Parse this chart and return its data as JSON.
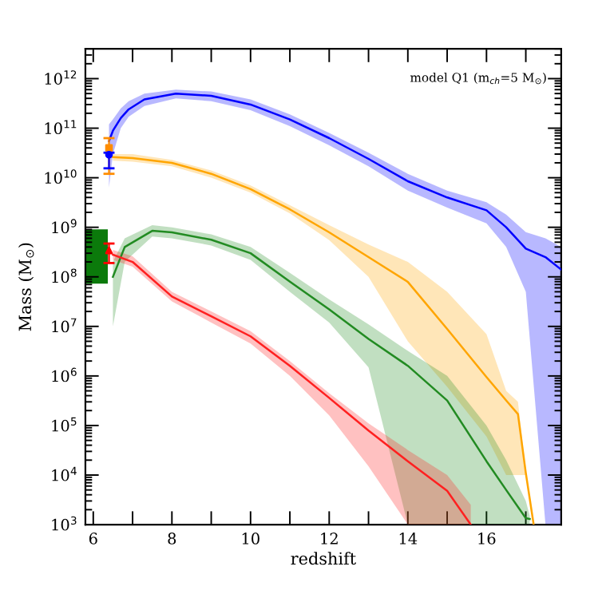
{
  "chart_data": {
    "type": "line",
    "xlabel": "redshift",
    "ylabel": "Mass (M$_{⊙}$)",
    "log": "y",
    "grid": false,
    "annotations": [
      "model Q1 (m$_{ch}$=5 M$_{⊙}$)"
    ],
    "xlim": [
      5.8,
      17.9
    ],
    "ylim": [
      1000,
      4000000000000.0
    ],
    "xticks": [
      6,
      {
        "value": 7,
        "label": null
      },
      8,
      {
        "value": 9,
        "label": null
      },
      10,
      {
        "value": 11,
        "label": null
      },
      12,
      {
        "value": 13,
        "label": null
      },
      14,
      {
        "value": 15,
        "label": null
      },
      16,
      {
        "value": 17,
        "label": null
      }
    ],
    "yticks": [
      {
        "value": 1000,
        "label": "10$^{3}$"
      },
      {
        "value": 10000,
        "label": "10$^{4}$"
      },
      {
        "value": 100000,
        "label": "10$^{5}$"
      },
      {
        "value": 1000000,
        "label": "10$^{6}$"
      },
      {
        "value": 10000000,
        "label": "10$^{7}$"
      },
      {
        "value": 100000000,
        "label": "10$^{8}$"
      },
      {
        "value": 1000000000,
        "label": "10$^{9}$"
      },
      {
        "value": 10000000000,
        "label": "10$^{10}$"
      },
      {
        "value": 100000000000,
        "label": "10$^{11}$"
      },
      {
        "value": 1000000000000,
        "label": "10$^{12}$"
      }
    ],
    "series": [
      {
        "type": "bar",
        "color": "#0b7a0b",
        "x": [
          6.08
        ],
        "values": [
          837000000.0
        ],
        "base": [
          73000000.0
        ]
      },
      {
        "color": "#0000ff",
        "x": [
          6.4,
          6.5,
          6.7,
          6.9,
          7.3,
          8.1,
          9,
          10,
          11,
          12,
          13,
          14,
          15,
          16,
          16.5,
          17,
          17.5,
          17.9
        ],
        "values": [
          55000000000.0,
          89000000000.0,
          160000000000.0,
          240000000000.0,
          380000000000.0,
          500000000000.0,
          450000000000.0,
          300000000000.0,
          150000000000.0,
          63000000000.0,
          24000000000.0,
          8500000000.0,
          4000000000.0,
          2200000000.0,
          1000000000.0,
          370000000.0,
          250000000.0,
          140000000.0
        ],
        "lower": [
          6300000000.0,
          30000000000.0,
          100000000000.0,
          170000000000.0,
          280000000000.0,
          400000000000.0,
          350000000000.0,
          230000000000.0,
          110000000000.0,
          45000000000.0,
          17000000000.0,
          5500000000.0,
          2500000000.0,
          1200000000.0,
          400000000.0,
          50000000.0,
          1000,
          1000
        ],
        "upper": [
          120000000000.0,
          150000000000.0,
          250000000000.0,
          350000000000.0,
          500000000000.0,
          600000000000.0,
          550000000000.0,
          380000000000.0,
          190000000000.0,
          80000000000.0,
          32000000000.0,
          12000000000.0,
          5500000000.0,
          3200000000.0,
          1800000000.0,
          800000000.0,
          600000000.0,
          400000000.0
        ]
      },
      {
        "color": "#ffa500",
        "x": [
          6.5,
          7,
          8,
          9,
          10,
          11,
          12,
          13,
          14,
          15,
          16,
          16.5,
          16.8,
          17,
          17.2
        ],
        "values": [
          26000000000.0,
          25000000000.0,
          20000000000.0,
          12000000000.0,
          5900000000.0,
          2300000000.0,
          790000000.0,
          250000000.0,
          79000000.0,
          8900000.0,
          950000.0,
          320000.0,
          170000.0,
          11000,
          1000
        ],
        "lower": [
          22000000000.0,
          21000000000.0,
          17000000000.0,
          10000000000.0,
          5000000000.0,
          1900000000.0,
          550000000.0,
          100000000.0,
          5000000.0,
          600000.0,
          60000.0,
          10000,
          10000,
          10000,
          1000
        ],
        "upper": [
          30000000000.0,
          30000000000.0,
          23000000000.0,
          14000000000.0,
          7000000000.0,
          2800000000.0,
          1100000000.0,
          450000000.0,
          200000000.0,
          50000000.0,
          7000000.0,
          500000.0,
          300000.0,
          12000,
          1000
        ]
      },
      {
        "color": "#228b22",
        "x": [
          6.5,
          6.8,
          7.5,
          8,
          9,
          10,
          11,
          12,
          13,
          14,
          15,
          16,
          16.5,
          17,
          17.1
        ],
        "values": [
          100000000.0,
          400000000.0,
          850000000.0,
          790000000.0,
          560000000.0,
          300000000.0,
          80000000.0,
          22000000.0,
          5600000.0,
          1600000.0,
          320000.0,
          19000,
          5000,
          1350,
          1300
        ],
        "lower": [
          10000000.0,
          200000000.0,
          650000000.0,
          600000000.0,
          430000000.0,
          220000000.0,
          50000000.0,
          12000000.0,
          1500000.0,
          1000,
          1000,
          1000,
          1000,
          1000,
          1000
        ],
        "upper": [
          200000000.0,
          600000000.0,
          1100000000.0,
          1000000000.0,
          720000000.0,
          400000000.0,
          120000000.0,
          35000000.0,
          11000000.0,
          3200000.0,
          1000000.0,
          100000.0,
          20000,
          3000,
          1500
        ]
      },
      {
        "color": "#ff2020",
        "x": [
          6.5,
          7,
          8,
          9,
          10,
          11,
          12,
          13,
          14,
          15,
          15.6
        ],
        "values": [
          280000000.0,
          200000000.0,
          40000000.0,
          16000000.0,
          6300000.0,
          1600000.0,
          360000.0,
          79000,
          19000,
          4800,
          1000
        ],
        "lower": [
          220000000.0,
          160000000.0,
          32000000.0,
          12000000.0,
          4500000.0,
          1000000.0,
          160000.0,
          15000,
          1000,
          1000,
          1000
        ],
        "upper": [
          350000000.0,
          260000000.0,
          50000000.0,
          20000000.0,
          8000000.0,
          2000000.0,
          450000.0,
          110000.0,
          32000,
          10000,
          2500
        ]
      },
      {
        "type": "scatter",
        "color": "#ff8c00",
        "marker": "square",
        "x": [
          6.4
        ],
        "values": [
          40000000000.0
        ],
        "errors": [
          [
            12000000000.0,
            63000000000.0
          ]
        ]
      },
      {
        "type": "scatter",
        "color": "#0000ff",
        "marker": "circle",
        "x": [
          6.4
        ],
        "values": [
          29000000000.0
        ],
        "errors": [
          [
            15500000000.0,
            32000000000.0
          ]
        ]
      },
      {
        "type": "scatter",
        "color": "#ff0000",
        "marker": "triangle",
        "x": [
          6.4
        ],
        "values": [
          340000000.0
        ],
        "errors": [
          [
            190000000.0,
            470000000.0
          ]
        ]
      }
    ]
  }
}
